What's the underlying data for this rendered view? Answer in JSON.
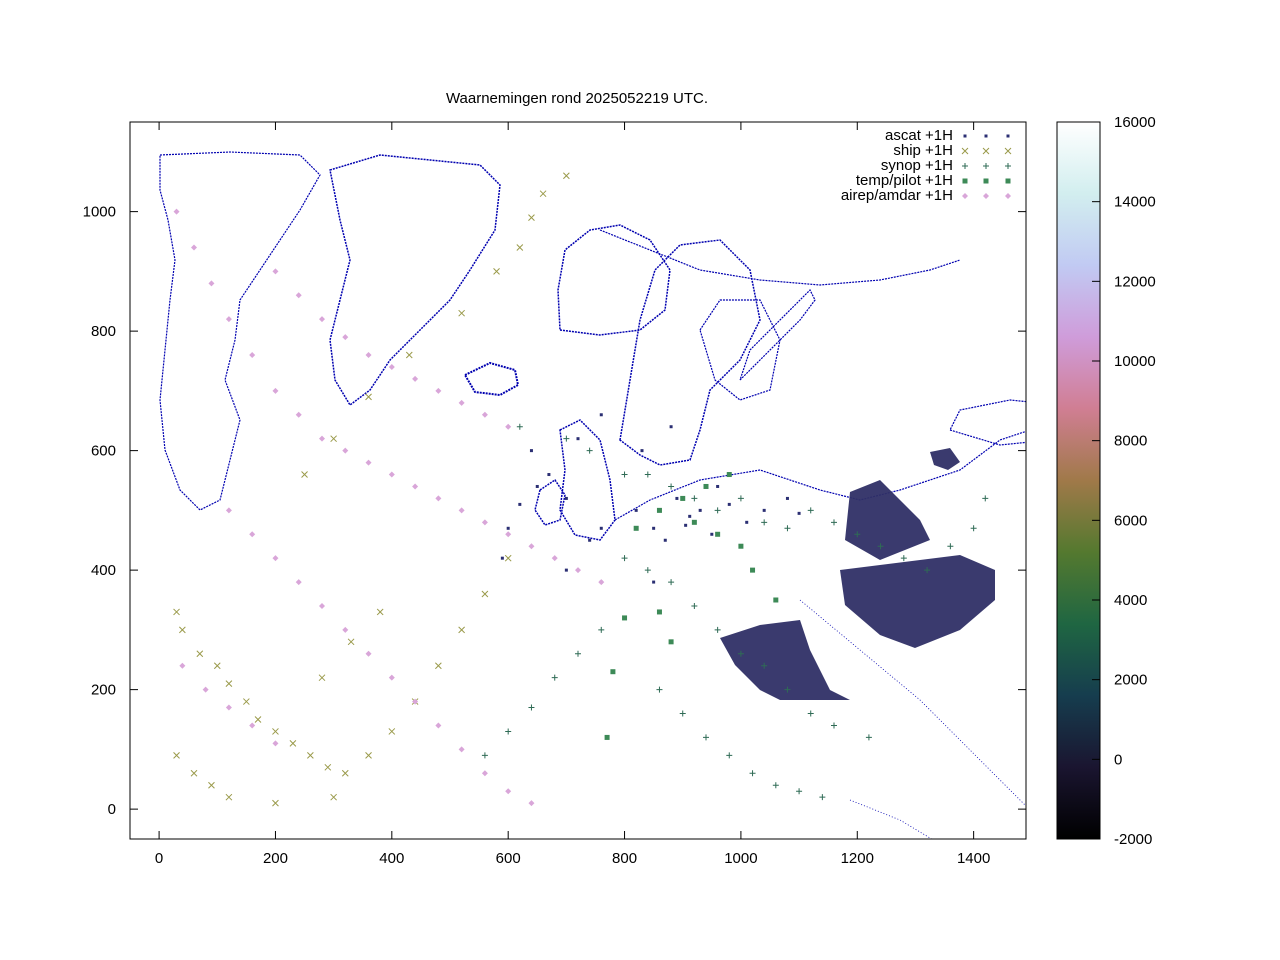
{
  "chart_data": {
    "type": "scatter",
    "title": "Waarnemingen rond 2025052219 UTC.",
    "xlabel": "",
    "ylabel": "",
    "xlim": [
      -50,
      1490
    ],
    "ylim": [
      -50,
      1150
    ],
    "xticks": [
      0,
      200,
      400,
      600,
      800,
      1000,
      1200,
      1400
    ],
    "yticks": [
      0,
      200,
      400,
      600,
      800,
      1000
    ],
    "grid": false,
    "legend_position": "top-right",
    "colorbar": {
      "min": -2000,
      "max": 16000,
      "ticks": [
        -2000,
        0,
        2000,
        4000,
        6000,
        8000,
        10000,
        12000,
        14000,
        16000
      ],
      "palette": "cubehelix"
    },
    "series": [
      {
        "name": "ascat +1H",
        "marker": "dot",
        "color": "#2b2f73",
        "points": [
          [
            912,
            490
          ],
          [
            905,
            475
          ],
          [
            930,
            500
          ],
          [
            890,
            520
          ],
          [
            950,
            460
          ],
          [
            980,
            510
          ],
          [
            1010,
            480
          ],
          [
            1040,
            500
          ],
          [
            870,
            450
          ],
          [
            850,
            470
          ],
          [
            1080,
            520
          ],
          [
            1100,
            495
          ],
          [
            760,
            470
          ],
          [
            740,
            450
          ],
          [
            960,
            540
          ],
          [
            820,
            500
          ],
          [
            640,
            600
          ],
          [
            670,
            560
          ],
          [
            700,
            520
          ],
          [
            650,
            540
          ],
          [
            720,
            620
          ],
          [
            760,
            660
          ],
          [
            830,
            600
          ],
          [
            880,
            640
          ],
          [
            620,
            510
          ],
          [
            600,
            470
          ],
          [
            590,
            420
          ],
          [
            700,
            400
          ],
          [
            760,
            380
          ],
          [
            850,
            380
          ]
        ]
      },
      {
        "name": "ship +1H",
        "marker": "cross",
        "color": "#9a9a4a",
        "points": [
          [
            30,
            330
          ],
          [
            40,
            300
          ],
          [
            70,
            260
          ],
          [
            100,
            240
          ],
          [
            120,
            210
          ],
          [
            150,
            180
          ],
          [
            170,
            150
          ],
          [
            200,
            130
          ],
          [
            230,
            110
          ],
          [
            260,
            90
          ],
          [
            290,
            70
          ],
          [
            320,
            60
          ],
          [
            30,
            90
          ],
          [
            60,
            60
          ],
          [
            90,
            40
          ],
          [
            120,
            20
          ],
          [
            200,
            10
          ],
          [
            300,
            20
          ],
          [
            360,
            90
          ],
          [
            400,
            130
          ],
          [
            440,
            180
          ],
          [
            480,
            240
          ],
          [
            520,
            300
          ],
          [
            560,
            360
          ],
          [
            600,
            420
          ],
          [
            250,
            560
          ],
          [
            300,
            620
          ],
          [
            360,
            690
          ],
          [
            430,
            760
          ],
          [
            520,
            830
          ],
          [
            580,
            900
          ],
          [
            620,
            940
          ],
          [
            640,
            990
          ],
          [
            660,
            1030
          ],
          [
            700,
            1060
          ],
          [
            280,
            220
          ],
          [
            330,
            280
          ],
          [
            380,
            330
          ]
        ]
      },
      {
        "name": "synop +1H",
        "marker": "plus",
        "color": "#2f6b55",
        "points": [
          [
            620,
            640
          ],
          [
            700,
            620
          ],
          [
            740,
            600
          ],
          [
            800,
            560
          ],
          [
            840,
            560
          ],
          [
            880,
            540
          ],
          [
            920,
            520
          ],
          [
            960,
            500
          ],
          [
            1000,
            520
          ],
          [
            1040,
            480
          ],
          [
            1080,
            470
          ],
          [
            1120,
            500
          ],
          [
            1160,
            480
          ],
          [
            1200,
            460
          ],
          [
            1240,
            440
          ],
          [
            1280,
            420
          ],
          [
            1320,
            400
          ],
          [
            1360,
            440
          ],
          [
            1400,
            470
          ],
          [
            1420,
            520
          ],
          [
            800,
            420
          ],
          [
            840,
            400
          ],
          [
            880,
            380
          ],
          [
            920,
            340
          ],
          [
            960,
            300
          ],
          [
            1000,
            260
          ],
          [
            1040,
            240
          ],
          [
            1080,
            200
          ],
          [
            1120,
            160
          ],
          [
            1160,
            140
          ],
          [
            1220,
            120
          ],
          [
            860,
            200
          ],
          [
            900,
            160
          ],
          [
            940,
            120
          ],
          [
            980,
            90
          ],
          [
            1020,
            60
          ],
          [
            1060,
            40
          ],
          [
            1100,
            30
          ],
          [
            1140,
            20
          ],
          [
            760,
            300
          ],
          [
            720,
            260
          ],
          [
            680,
            220
          ],
          [
            640,
            170
          ],
          [
            600,
            130
          ],
          [
            560,
            90
          ]
        ]
      },
      {
        "name": "temp/pilot +1H",
        "marker": "square",
        "color": "#3d8a57",
        "points": [
          [
            770,
            120
          ],
          [
            780,
            230
          ],
          [
            800,
            320
          ],
          [
            860,
            330
          ],
          [
            880,
            280
          ],
          [
            920,
            480
          ],
          [
            960,
            460
          ],
          [
            1000,
            440
          ],
          [
            1060,
            350
          ],
          [
            1020,
            400
          ],
          [
            900,
            520
          ],
          [
            860,
            500
          ],
          [
            820,
            470
          ],
          [
            940,
            540
          ],
          [
            980,
            560
          ]
        ]
      },
      {
        "name": "airep/amdar +1H",
        "marker": "diamond",
        "color": "#d9a6d9",
        "points": [
          [
            30,
            1000
          ],
          [
            60,
            940
          ],
          [
            90,
            880
          ],
          [
            120,
            820
          ],
          [
            160,
            760
          ],
          [
            200,
            700
          ],
          [
            240,
            660
          ],
          [
            280,
            620
          ],
          [
            320,
            600
          ],
          [
            360,
            580
          ],
          [
            400,
            560
          ],
          [
            440,
            540
          ],
          [
            480,
            520
          ],
          [
            520,
            500
          ],
          [
            560,
            480
          ],
          [
            600,
            460
          ],
          [
            640,
            440
          ],
          [
            680,
            420
          ],
          [
            720,
            400
          ],
          [
            760,
            380
          ],
          [
            200,
            900
          ],
          [
            240,
            860
          ],
          [
            280,
            820
          ],
          [
            320,
            790
          ],
          [
            360,
            760
          ],
          [
            400,
            740
          ],
          [
            440,
            720
          ],
          [
            480,
            700
          ],
          [
            520,
            680
          ],
          [
            560,
            660
          ],
          [
            600,
            640
          ],
          [
            120,
            500
          ],
          [
            160,
            460
          ],
          [
            200,
            420
          ],
          [
            240,
            380
          ],
          [
            280,
            340
          ],
          [
            320,
            300
          ],
          [
            360,
            260
          ],
          [
            400,
            220
          ],
          [
            440,
            180
          ],
          [
            480,
            140
          ],
          [
            520,
            100
          ],
          [
            560,
            60
          ],
          [
            600,
            30
          ],
          [
            640,
            10
          ],
          [
            40,
            240
          ],
          [
            80,
            200
          ],
          [
            120,
            170
          ],
          [
            160,
            140
          ],
          [
            200,
            110
          ]
        ]
      }
    ]
  },
  "legend": [
    {
      "label": "ascat +1H",
      "icon": "dot-icon"
    },
    {
      "label": "ship +1H",
      "icon": "cross-icon"
    },
    {
      "label": "synop +1H",
      "icon": "plus-icon"
    },
    {
      "label": "temp/pilot +1H",
      "icon": "square-icon"
    },
    {
      "label": "airep/amdar +1H",
      "icon": "diamond-icon"
    }
  ],
  "colorbar_colors": [
    "#000000",
    "#1a1530",
    "#163d4e",
    "#1f6642",
    "#54792f",
    "#a07949",
    "#d07e93",
    "#cf9cda",
    "#c1caf3",
    "#d2eeef",
    "#ffffff"
  ]
}
